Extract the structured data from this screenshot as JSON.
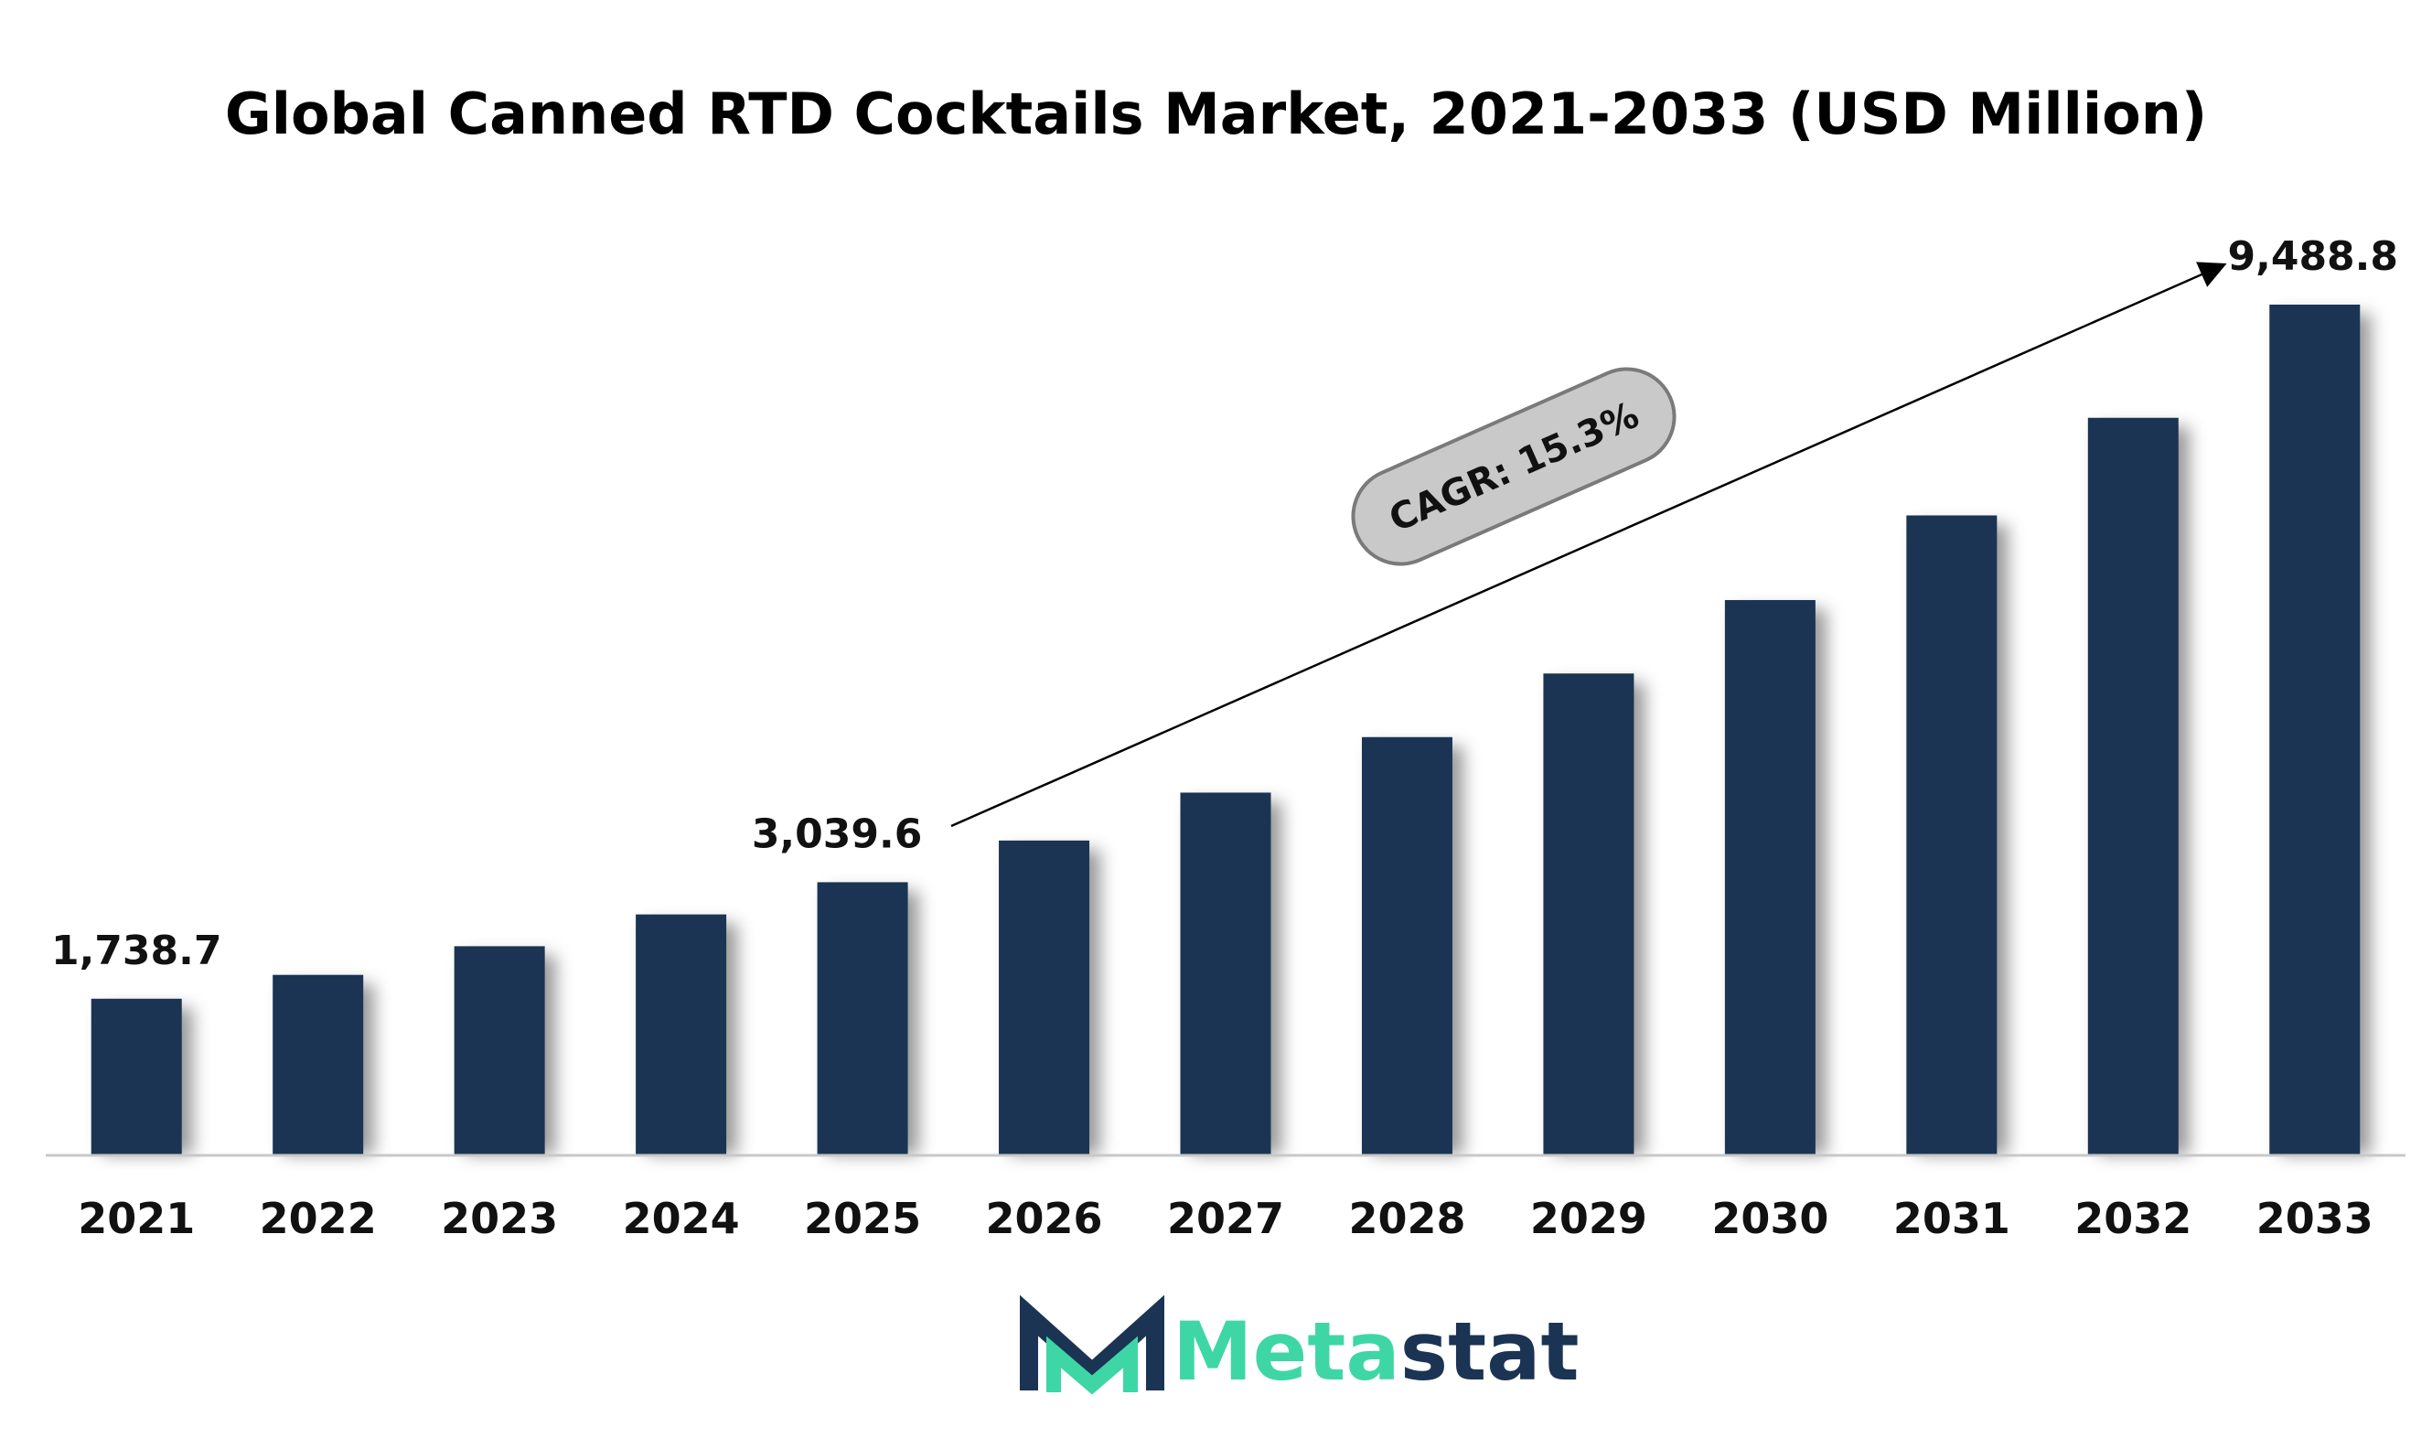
{
  "chart_data": {
    "type": "bar",
    "title": "Global Canned RTD Cocktails Market, 2021-2033 (USD Million)",
    "categories": [
      "2021",
      "2022",
      "2023",
      "2024",
      "2025",
      "2026",
      "2027",
      "2028",
      "2029",
      "2030",
      "2031",
      "2032",
      "2033"
    ],
    "values": [
      1738.7,
      2005,
      2325,
      2680,
      3039.6,
      3505,
      4040,
      4660,
      5370,
      6190,
      7135,
      8225,
      9488.8
    ],
    "labels": [
      {
        "index": 0,
        "text": "1,738.7"
      },
      {
        "index": 4,
        "text": "3,039.6"
      },
      {
        "index": 12,
        "text": "9,488.8"
      }
    ],
    "annotation": "CAGR: 15.3%",
    "ylim": [
      0,
      9488.8
    ],
    "bar_color": "#1b3453",
    "grid": false
  },
  "brand": {
    "name_part1": "Meta",
    "name_part2": "stat",
    "colors": {
      "accent": "#3fd6a6",
      "dark": "#1b3453"
    }
  }
}
